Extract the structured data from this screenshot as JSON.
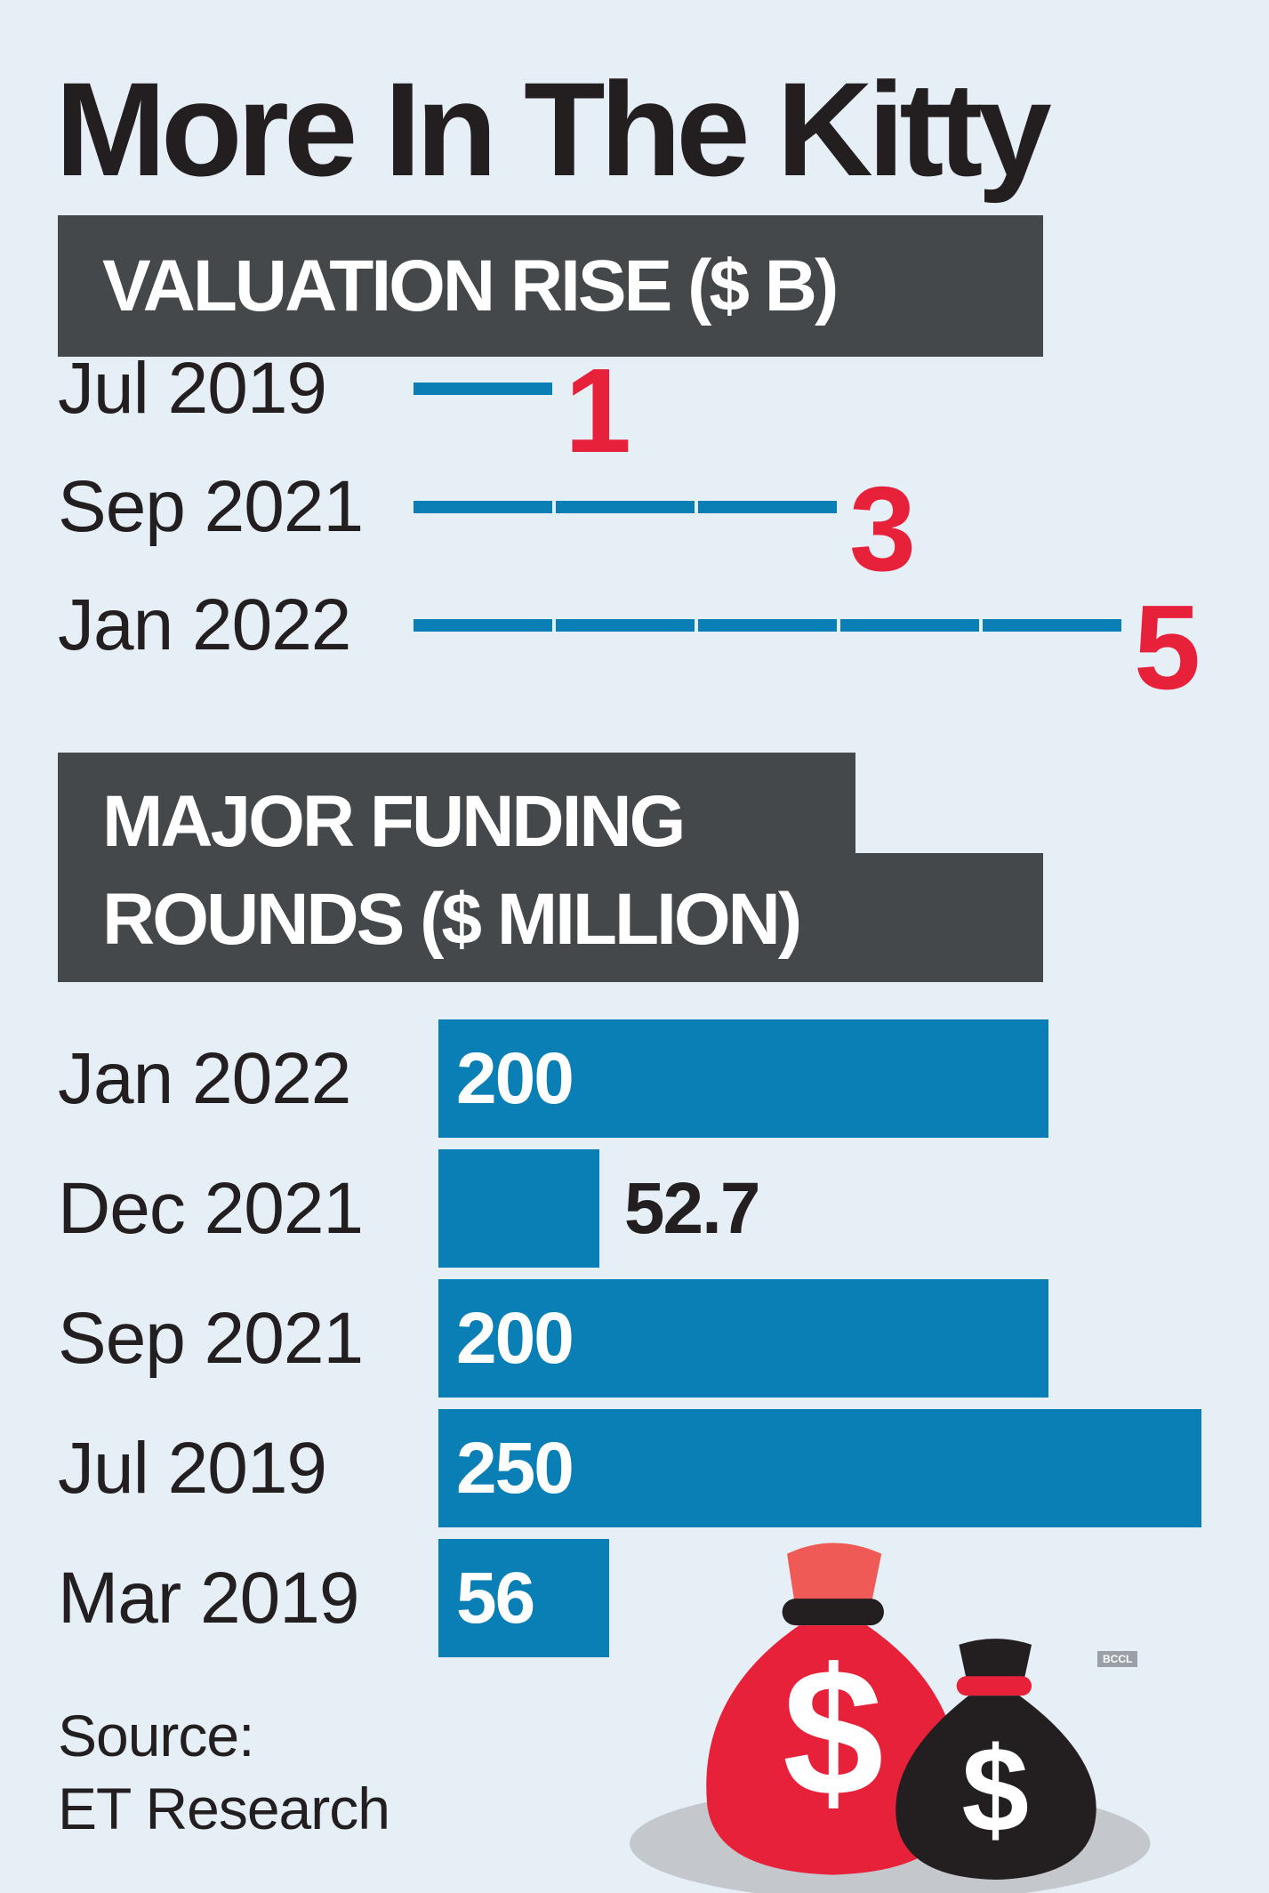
{
  "title": "More In The Kitty",
  "chart_data": [
    {
      "type": "bar",
      "title": "VALUATION RISE ($ B)",
      "segmented": true,
      "categories": [
        "Jul 2019",
        "Sep 2021",
        "Jan 2022"
      ],
      "values": [
        1,
        3,
        5
      ],
      "color": "#0a7fb5",
      "label_color": "#e8213a"
    },
    {
      "type": "bar",
      "title": [
        "MAJOR FUNDING",
        "ROUNDS  ($ MILLION)"
      ],
      "categories": [
        "Jan 2022",
        "Dec 2021",
        "Sep 2021",
        "Jul 2019",
        "Mar 2019"
      ],
      "values": [
        200,
        52.7,
        200,
        250,
        56
      ],
      "color": "#0a7fb5",
      "label_color": "#ffffff",
      "outside_label_color": "#231f20"
    }
  ],
  "source": [
    "Source:",
    "ET Research"
  ],
  "credit": "BCCL"
}
